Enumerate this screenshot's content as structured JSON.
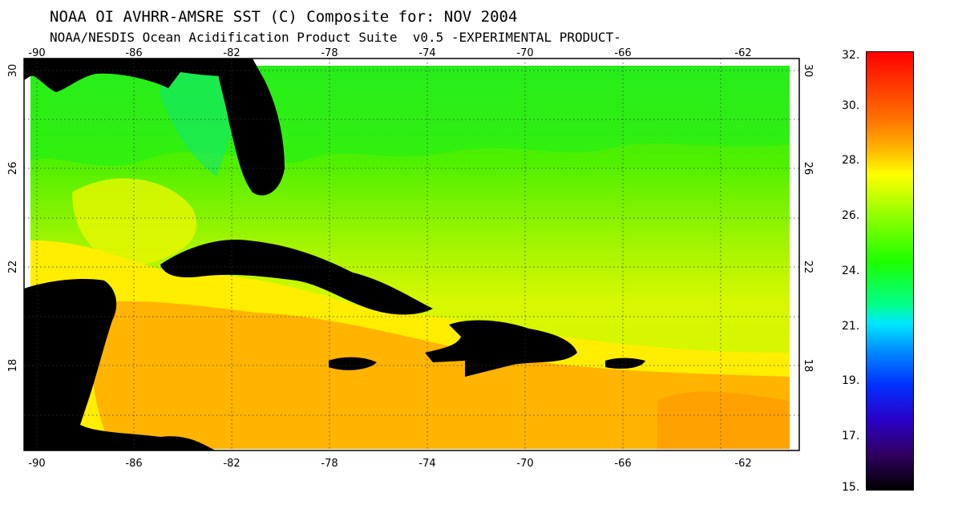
{
  "title": "NOAA OI AVHRR-AMSRE SST (C) Composite for: NOV 2004",
  "subtitle": "NOAA/NESDIS Ocean Acidification Product Suite  v0.5 -EXPERIMENTAL PRODUCT-",
  "axes": {
    "lon_ticks": [
      "-90",
      "-86",
      "-82",
      "-78",
      "-74",
      "-70",
      "-66",
      "-62"
    ],
    "lat_ticks": [
      "30",
      "26",
      "22",
      "18"
    ]
  },
  "colorbar": {
    "labels": [
      "32.",
      "30.",
      "28.",
      "26.",
      "24.",
      "21.",
      "19.",
      "17.",
      "15."
    ]
  },
  "colors": {
    "land": "#000000",
    "warm_sea": "#ffb400",
    "mid_sea": "#ffff00",
    "cool_sea": "#7cff00"
  }
}
